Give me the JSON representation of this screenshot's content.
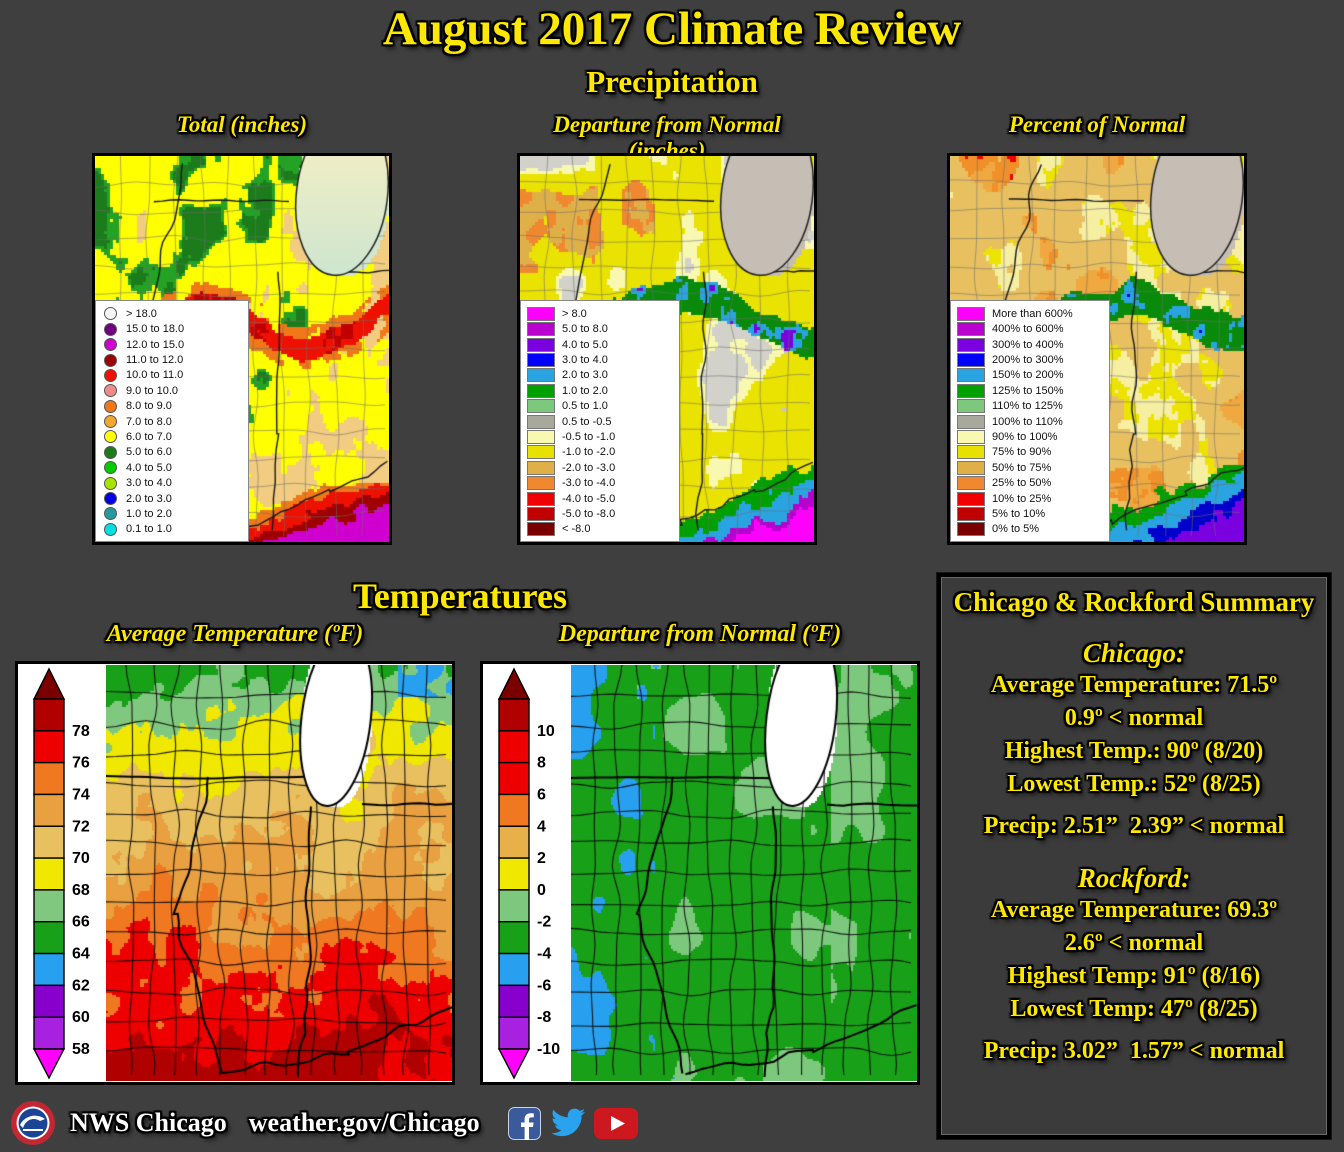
{
  "page": {
    "background": "#3f3f3f",
    "accent_yellow": "#ffe800"
  },
  "header": {
    "title": "August 2017 Climate Review",
    "precip_section": "Precipitation",
    "temp_section": "Temperatures"
  },
  "precip_maps": [
    {
      "key": "total",
      "title": "Total (inches)",
      "legend_shape": "dot",
      "legend": [
        {
          "label": "> 18.0",
          "color": "#f5f5f5"
        },
        {
          "label": "15.0 to 18.0",
          "color": "#70007e"
        },
        {
          "label": "12.0 to 15.0",
          "color": "#cf00cf"
        },
        {
          "label": "11.0 to 12.0",
          "color": "#9e0000"
        },
        {
          "label": "10.0 to 11.0",
          "color": "#ee1000"
        },
        {
          "label": "9.0 to 10.0",
          "color": "#f28b8b"
        },
        {
          "label": "8.0 to 9.0",
          "color": "#f07818"
        },
        {
          "label": "7.0 to 8.0",
          "color": "#f0a830"
        },
        {
          "label": "6.0 to 7.0",
          "color": "#ffff00"
        },
        {
          "label": "5.0 to 6.0",
          "color": "#1c7c1c"
        },
        {
          "label": "4.0 to 5.0",
          "color": "#00cc00"
        },
        {
          "label": "3.0 to 4.0",
          "color": "#a8e400"
        },
        {
          "label": "2.0 to 3.0",
          "color": "#0000e8"
        },
        {
          "label": "1.0 to 2.0",
          "color": "#2898a0"
        },
        {
          "label": "0.1 to 1.0",
          "color": "#00e0e0"
        }
      ]
    },
    {
      "key": "dep",
      "title": "Departure from Normal (inches)",
      "legend_shape": "square",
      "legend": [
        {
          "label": "> 8.0",
          "color": "#ff00ff"
        },
        {
          "label": "5.0 to 8.0",
          "color": "#b800cf"
        },
        {
          "label": "4.0 to 5.0",
          "color": "#7a00e0"
        },
        {
          "label": "3.0 to 4.0",
          "color": "#0000ff"
        },
        {
          "label": "2.0 to 3.0",
          "color": "#2aa4e0"
        },
        {
          "label": "1.0 to 2.0",
          "color": "#00a000"
        },
        {
          "label": "0.5 to 1.0",
          "color": "#7cc87c"
        },
        {
          "label": "0.5 to -0.5",
          "color": "#a8a89c"
        },
        {
          "label": "-0.5 to -1.0",
          "color": "#f8f8b0"
        },
        {
          "label": "-1.0 to -2.0",
          "color": "#e8e000"
        },
        {
          "label": "-2.0 to -3.0",
          "color": "#e0b048"
        },
        {
          "label": "-3.0 to -4.0",
          "color": "#f08830"
        },
        {
          "label": "-4.0 to -5.0",
          "color": "#f00000"
        },
        {
          "label": "-5.0 to -8.0",
          "color": "#c00000"
        },
        {
          "label": "< -8.0",
          "color": "#7a0000"
        }
      ]
    },
    {
      "key": "pct",
      "title": "Percent of Normal",
      "legend_shape": "square",
      "legend": [
        {
          "label": "More than 600%",
          "color": "#ff00ff"
        },
        {
          "label": "400% to 600%",
          "color": "#b800cf"
        },
        {
          "label": "300% to 400%",
          "color": "#7a00e0"
        },
        {
          "label": "200% to 300%",
          "color": "#0000ff"
        },
        {
          "label": "150% to 200%",
          "color": "#2aa4e0"
        },
        {
          "label": "125% to 150%",
          "color": "#00a000"
        },
        {
          "label": "110% to 125%",
          "color": "#7cc87c"
        },
        {
          "label": "100% to 110%",
          "color": "#a8a89c"
        },
        {
          "label": "90% to 100%",
          "color": "#f8f8b0"
        },
        {
          "label": "75% to 90%",
          "color": "#e8e000"
        },
        {
          "label": "50% to 75%",
          "color": "#e0b048"
        },
        {
          "label": "25% to 50%",
          "color": "#f08830"
        },
        {
          "label": "10% to 25%",
          "color": "#f00000"
        },
        {
          "label": "5% to 10%",
          "color": "#c00000"
        },
        {
          "label": "0% to 5%",
          "color": "#7a0000"
        }
      ]
    }
  ],
  "temp_maps": [
    {
      "key": "avgt",
      "title": "Average Temperature (ºF)",
      "scale": {
        "labels": [
          "78",
          "76",
          "74",
          "72",
          "70",
          "68",
          "66",
          "64",
          "62",
          "60",
          "58"
        ],
        "colors": [
          "#b00000",
          "#ee0000",
          "#f07820",
          "#e8a040",
          "#e8c060",
          "#f0e800",
          "#80c880",
          "#18a018",
          "#28a0f0",
          "#8800cc",
          "#a820e0"
        ],
        "arrow_top": "#7a0000",
        "arrow_bottom": "#ff00ff"
      }
    },
    {
      "key": "dept",
      "title": "Departure from Normal (ºF)",
      "scale": {
        "labels": [
          "10",
          "8",
          "6",
          "4",
          "2",
          "0",
          "-2",
          "-4",
          "-6",
          "-8",
          "-10"
        ],
        "colors": [
          "#b00000",
          "#ee0000",
          "#ee0000",
          "#f07820",
          "#e8b048",
          "#f0e800",
          "#7cc87c",
          "#18a018",
          "#28a0f0",
          "#8800cc",
          "#a820e0"
        ],
        "arrow_top": "#7a0000",
        "arrow_bottom": "#ff00ff"
      }
    }
  ],
  "summary": {
    "title": "Chicago & Rockford Summary",
    "chicago": {
      "heading": "Chicago:",
      "lines": [
        "Average Temperature: 71.5º",
        "0.9º < normal",
        "Highest Temp.: 90º (8/20)",
        "Lowest Temp.: 52º (8/25)",
        "Precip: 2.51”  2.39” < normal"
      ]
    },
    "rockford": {
      "heading": "Rockford:",
      "lines": [
        "Average Temperature: 69.3º",
        "2.6º < normal",
        "Highest Temp: 91º (8/16)",
        "Lowest Temp: 47º (8/25)",
        "Precip: 3.02”  1.57” < normal"
      ]
    }
  },
  "footer": {
    "org": "NWS Chicago",
    "url": "weather.gov/Chicago",
    "social": [
      "facebook-icon",
      "twitter-icon",
      "youtube-icon"
    ]
  }
}
